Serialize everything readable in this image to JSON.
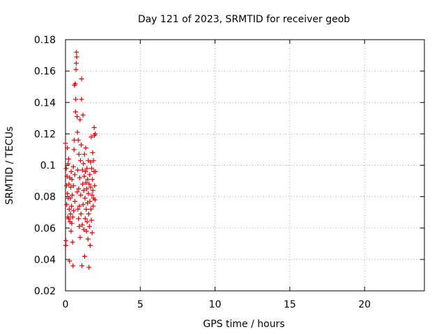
{
  "chart_data": {
    "type": "scatter",
    "title": "Day 121 of 2023, SRMTID for receiver geob",
    "xlabel": "GPS time / hours",
    "ylabel": "SRMTID / TECUs",
    "xlim": [
      0,
      24
    ],
    "ylim": [
      0.02,
      0.18
    ],
    "xticks": [
      0,
      5,
      10,
      15,
      20
    ],
    "xtick_labels": [
      "0",
      "5",
      "10",
      "15",
      "20"
    ],
    "yticks": [
      0.02,
      0.04,
      0.06,
      0.08,
      0.1,
      0.12,
      0.14,
      0.16,
      0.18
    ],
    "ytick_labels": [
      "0.02",
      "0.04",
      "0.06",
      "0.08",
      "0.1",
      "0.12",
      "0.14",
      "0.16",
      "0.18"
    ],
    "grid": true,
    "marker": "+",
    "color": "#dd0000",
    "series": [
      {
        "name": "geob",
        "points": [
          [
            0.0,
            0.114
          ],
          [
            0.02,
            0.049
          ],
          [
            0.03,
            0.052
          ],
          [
            0.05,
            0.098
          ],
          [
            0.07,
            0.087
          ],
          [
            0.08,
            0.075
          ],
          [
            0.1,
            0.093
          ],
          [
            0.12,
            0.111
          ],
          [
            0.13,
            0.082
          ],
          [
            0.15,
            0.067
          ],
          [
            0.17,
            0.101
          ],
          [
            0.18,
            0.079
          ],
          [
            0.2,
            0.104
          ],
          [
            0.22,
            0.066
          ],
          [
            0.23,
            0.088
          ],
          [
            0.25,
            0.072
          ],
          [
            0.27,
            0.039
          ],
          [
            0.28,
            0.092
          ],
          [
            0.3,
            0.064
          ],
          [
            0.32,
            0.079
          ],
          [
            0.33,
            0.069
          ],
          [
            0.35,
            0.086
          ],
          [
            0.37,
            0.058
          ],
          [
            0.38,
            0.096
          ],
          [
            0.4,
            0.074
          ],
          [
            0.42,
            0.063
          ],
          [
            0.43,
            0.091
          ],
          [
            0.45,
            0.081
          ],
          [
            0.47,
            0.051
          ],
          [
            0.48,
            0.067
          ],
          [
            0.5,
            0.036
          ],
          [
            0.52,
            0.099
          ],
          [
            0.53,
            0.087
          ],
          [
            0.55,
            0.071
          ],
          [
            0.57,
            0.11
          ],
          [
            0.58,
            0.116
          ],
          [
            0.6,
            0.151
          ],
          [
            0.62,
            0.094
          ],
          [
            0.63,
            0.077
          ],
          [
            0.65,
            0.152
          ],
          [
            0.67,
            0.134
          ],
          [
            0.68,
            0.142
          ],
          [
            0.7,
            0.161
          ],
          [
            0.72,
            0.165
          ],
          [
            0.73,
            0.172
          ],
          [
            0.75,
            0.169
          ],
          [
            0.77,
            0.131
          ],
          [
            0.78,
            0.083
          ],
          [
            0.8,
            0.121
          ],
          [
            0.82,
            0.097
          ],
          [
            0.83,
            0.072
          ],
          [
            0.85,
            0.116
          ],
          [
            0.87,
            0.066
          ],
          [
            0.88,
            0.085
          ],
          [
            0.9,
            0.107
          ],
          [
            0.92,
            0.061
          ],
          [
            0.93,
            0.074
          ],
          [
            0.95,
            0.092
          ],
          [
            0.97,
            0.129
          ],
          [
            0.98,
            0.054
          ],
          [
            1.0,
            0.103
          ],
          [
            1.02,
            0.081
          ],
          [
            1.03,
            0.069
          ],
          [
            1.05,
            0.113
          ],
          [
            1.07,
            0.142
          ],
          [
            1.08,
            0.155
          ],
          [
            1.1,
            0.036
          ],
          [
            1.12,
            0.062
          ],
          [
            1.13,
            0.097
          ],
          [
            1.15,
            0.088
          ],
          [
            1.17,
            0.132
          ],
          [
            1.18,
            0.075
          ],
          [
            1.2,
            0.101
          ],
          [
            1.22,
            0.084
          ],
          [
            1.23,
            0.059
          ],
          [
            1.25,
            0.093
          ],
          [
            1.27,
            0.107
          ],
          [
            1.28,
            0.042
          ],
          [
            1.3,
            0.079
          ],
          [
            1.32,
            0.066
          ],
          [
            1.33,
            0.096
          ],
          [
            1.35,
            0.111
          ],
          [
            1.37,
            0.089
          ],
          [
            1.38,
            0.072
          ],
          [
            1.4,
            0.058
          ],
          [
            1.42,
            0.085
          ],
          [
            1.43,
            0.098
          ],
          [
            1.45,
            0.064
          ],
          [
            1.47,
            0.076
          ],
          [
            1.48,
            0.091
          ],
          [
            1.5,
            0.053
          ],
          [
            1.52,
            0.103
          ],
          [
            1.53,
            0.082
          ],
          [
            1.55,
            0.069
          ],
          [
            1.57,
            0.035
          ],
          [
            1.58,
            0.088
          ],
          [
            1.6,
            0.061
          ],
          [
            1.62,
            0.094
          ],
          [
            1.63,
            0.077
          ],
          [
            1.65,
            0.049
          ],
          [
            1.67,
            0.102
          ],
          [
            1.68,
            0.086
          ],
          [
            1.7,
            0.072
          ],
          [
            1.72,
            0.118
          ],
          [
            1.73,
            0.065
          ],
          [
            1.75,
            0.098
          ],
          [
            1.77,
            0.081
          ],
          [
            1.78,
            0.057
          ],
          [
            1.8,
            0.091
          ],
          [
            1.82,
            0.108
          ],
          [
            1.83,
            0.084
          ],
          [
            1.85,
            0.074
          ],
          [
            1.87,
            0.103
          ],
          [
            1.88,
            0.079
          ],
          [
            1.9,
            0.096
          ],
          [
            1.92,
            0.124
          ],
          [
            1.93,
            0.119
          ],
          [
            1.95,
            0.087
          ],
          [
            1.97,
            0.078
          ],
          [
            1.98,
            0.12
          ],
          [
            2.0,
            0.096
          ]
        ]
      }
    ]
  }
}
